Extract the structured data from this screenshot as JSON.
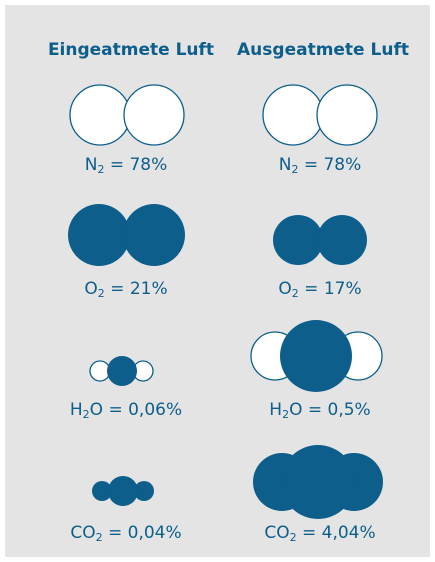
{
  "columns": {
    "left_title": "Eingeatmete Luft",
    "right_title": "Ausgeatmete Luft"
  },
  "colors": {
    "background": "#e4e4e5",
    "atom_filled": "#0d5e8a",
    "atom_empty": "#ffffff",
    "text": "#0d5e8a"
  },
  "rows": [
    {
      "molecule": "N2",
      "formula": "N",
      "subscript": "2",
      "suffix": "",
      "inhaled": " = 78%",
      "exhaled": " = 78%"
    },
    {
      "molecule": "O2",
      "formula": "O",
      "subscript": "2",
      "suffix": "",
      "inhaled": " = 21%",
      "exhaled": " = 17%"
    },
    {
      "molecule": "H2O",
      "formula": "H",
      "subscript": "2",
      "suffix": "O",
      "inhaled": " = 0,06%",
      "exhaled": " = 0,5%"
    },
    {
      "molecule": "CO2",
      "formula": "CO",
      "subscript": "2",
      "suffix": "",
      "inhaled": " = 0,04%",
      "exhaled": " = 4,04%"
    }
  ]
}
